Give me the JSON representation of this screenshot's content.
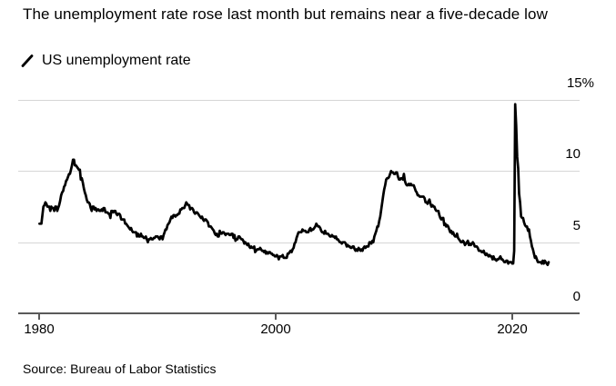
{
  "header": {
    "title": "The unemployment rate rose last month but remains near a five-decade low"
  },
  "legend": {
    "label": "US unemployment rate"
  },
  "footer": {
    "source": "Source: Bureau of Labor Statistics"
  },
  "colors": {
    "line": "#000000",
    "grid": "#d6d6d6",
    "axis": "#5a5a5a",
    "text": "#000000",
    "background": "#ffffff"
  },
  "chart_data": {
    "type": "line",
    "title": "The unemployment rate rose last month but remains near a five-decade low",
    "legend_entries": [
      "US unemployment rate"
    ],
    "ylabel": "",
    "xlabel": "",
    "grid": "horizontal",
    "legend_position": "top-left",
    "xlim": [
      1978.2,
      2025.7
    ],
    "ylim": [
      0,
      15
    ],
    "xticks": [
      1980,
      2000,
      2020
    ],
    "xtick_labels": [
      "1980",
      "2000",
      "2020"
    ],
    "yticks": [
      0,
      5,
      10,
      15
    ],
    "ytick_labels": [
      "0",
      "5",
      "10",
      "15%"
    ],
    "unit": "percent",
    "frequency": "monthly",
    "start_year": 1980,
    "start_month": 1,
    "end_year": 2023,
    "end_month": 2,
    "series": [
      {
        "name": "US unemployment rate",
        "values": [
          6.3,
          6.3,
          6.3,
          6.9,
          7.5,
          7.6,
          7.8,
          7.7,
          7.5,
          7.5,
          7.5,
          7.2,
          7.5,
          7.4,
          7.4,
          7.2,
          7.5,
          7.5,
          7.2,
          7.4,
          7.6,
          7.9,
          8.3,
          8.5,
          8.6,
          8.9,
          9.0,
          9.3,
          9.4,
          9.6,
          9.8,
          9.8,
          10.1,
          10.4,
          10.8,
          10.8,
          10.4,
          10.4,
          10.3,
          10.2,
          10.1,
          10.1,
          9.4,
          9.5,
          9.2,
          8.8,
          8.5,
          8.3,
          8.0,
          7.8,
          7.8,
          7.7,
          7.4,
          7.2,
          7.5,
          7.5,
          7.3,
          7.4,
          7.2,
          7.3,
          7.3,
          7.2,
          7.2,
          7.3,
          7.2,
          7.4,
          7.4,
          7.1,
          7.1,
          7.1,
          7.0,
          7.0,
          6.7,
          7.2,
          7.2,
          7.1,
          7.2,
          7.2,
          7.0,
          6.9,
          7.0,
          7.0,
          6.9,
          6.6,
          6.6,
          6.6,
          6.6,
          6.3,
          6.3,
          6.2,
          6.1,
          6.0,
          5.9,
          6.0,
          5.8,
          5.7,
          5.7,
          5.7,
          5.7,
          5.4,
          5.6,
          5.4,
          5.4,
          5.6,
          5.4,
          5.4,
          5.3,
          5.3,
          5.4,
          5.2,
          5.0,
          5.2,
          5.2,
          5.3,
          5.2,
          5.2,
          5.3,
          5.3,
          5.4,
          5.4,
          5.4,
          5.3,
          5.2,
          5.4,
          5.4,
          5.2,
          5.5,
          5.7,
          5.9,
          5.9,
          6.2,
          6.3,
          6.4,
          6.6,
          6.8,
          6.7,
          6.9,
          6.9,
          6.8,
          6.9,
          6.9,
          7.0,
          7.0,
          7.3,
          7.3,
          7.4,
          7.4,
          7.4,
          7.6,
          7.8,
          7.7,
          7.6,
          7.6,
          7.3,
          7.4,
          7.4,
          7.3,
          7.1,
          7.0,
          7.1,
          7.1,
          7.0,
          6.9,
          6.8,
          6.7,
          6.8,
          6.6,
          6.5,
          6.6,
          6.6,
          6.5,
          6.4,
          6.1,
          6.1,
          6.1,
          6.0,
          5.9,
          5.8,
          5.6,
          5.5,
          5.6,
          5.4,
          5.4,
          5.8,
          5.6,
          5.6,
          5.7,
          5.7,
          5.6,
          5.5,
          5.6,
          5.6,
          5.6,
          5.5,
          5.5,
          5.6,
          5.6,
          5.3,
          5.5,
          5.1,
          5.2,
          5.2,
          5.4,
          5.4,
          5.3,
          5.2,
          5.2,
          5.1,
          4.9,
          5.0,
          4.9,
          4.8,
          4.9,
          4.7,
          4.6,
          4.7,
          4.6,
          4.6,
          4.7,
          4.3,
          4.4,
          4.5,
          4.5,
          4.5,
          4.6,
          4.5,
          4.4,
          4.4,
          4.3,
          4.4,
          4.2,
          4.3,
          4.2,
          4.3,
          4.3,
          4.2,
          4.2,
          4.1,
          4.1,
          4.0,
          4.0,
          4.1,
          4.0,
          3.8,
          4.0,
          4.0,
          4.0,
          4.1,
          3.9,
          3.9,
          3.9,
          3.9,
          4.2,
          4.2,
          4.3,
          4.4,
          4.3,
          4.5,
          4.6,
          4.9,
          5.0,
          5.3,
          5.5,
          5.7,
          5.7,
          5.7,
          5.7,
          5.9,
          5.8,
          5.8,
          5.8,
          5.7,
          5.7,
          5.7,
          5.9,
          6.0,
          5.8,
          5.9,
          5.9,
          6.0,
          6.1,
          6.3,
          6.2,
          6.1,
          6.1,
          6.0,
          5.8,
          5.7,
          5.7,
          5.6,
          5.8,
          5.6,
          5.6,
          5.6,
          5.5,
          5.4,
          5.4,
          5.5,
          5.4,
          5.4,
          5.3,
          5.4,
          5.2,
          5.2,
          5.1,
          5.0,
          5.0,
          4.9,
          5.0,
          5.0,
          5.0,
          4.9,
          4.7,
          4.8,
          4.7,
          4.7,
          4.6,
          4.6,
          4.7,
          4.7,
          4.5,
          4.4,
          4.5,
          4.4,
          4.6,
          4.5,
          4.4,
          4.5,
          4.4,
          4.6,
          4.7,
          4.6,
          4.7,
          4.7,
          4.7,
          5.0,
          5.0,
          4.9,
          5.1,
          5.0,
          5.4,
          5.6,
          5.8,
          6.1,
          6.1,
          6.5,
          6.8,
          7.3,
          7.8,
          8.3,
          8.7,
          9.0,
          9.4,
          9.5,
          9.5,
          9.6,
          9.8,
          10.0,
          9.9,
          9.9,
          9.8,
          9.8,
          9.9,
          9.9,
          9.6,
          9.4,
          9.4,
          9.5,
          9.5,
          9.4,
          9.8,
          9.3,
          9.1,
          9.0,
          9.0,
          9.1,
          9.0,
          9.1,
          9.0,
          9.0,
          9.0,
          8.8,
          8.6,
          8.5,
          8.3,
          8.3,
          8.2,
          8.2,
          8.2,
          8.2,
          8.2,
          8.1,
          7.8,
          7.8,
          7.7,
          7.9,
          8.0,
          7.7,
          7.5,
          7.6,
          7.5,
          7.5,
          7.3,
          7.2,
          7.2,
          7.2,
          6.9,
          6.7,
          6.6,
          6.7,
          6.7,
          6.2,
          6.3,
          6.1,
          6.2,
          6.1,
          5.9,
          5.7,
          5.8,
          5.6,
          5.7,
          5.5,
          5.4,
          5.4,
          5.6,
          5.3,
          5.2,
          5.1,
          5.0,
          5.0,
          5.1,
          5.0,
          4.8,
          4.9,
          5.0,
          5.1,
          4.8,
          4.9,
          4.8,
          4.9,
          5.0,
          4.9,
          4.7,
          4.7,
          4.7,
          4.6,
          4.4,
          4.4,
          4.4,
          4.3,
          4.3,
          4.4,
          4.2,
          4.1,
          4.2,
          4.1,
          4.0,
          4.1,
          4.0,
          4.0,
          3.8,
          4.0,
          3.8,
          3.8,
          3.7,
          3.8,
          3.8,
          3.9,
          4.0,
          3.8,
          3.8,
          3.7,
          3.6,
          3.6,
          3.7,
          3.7,
          3.5,
          3.6,
          3.6,
          3.6,
          3.5,
          3.5,
          4.4,
          14.7,
          13.2,
          11.0,
          10.2,
          8.4,
          7.8,
          6.8,
          6.7,
          6.7,
          6.4,
          6.2,
          6.1,
          6.1,
          5.8,
          5.9,
          5.4,
          5.1,
          4.7,
          4.5,
          4.2,
          3.9,
          4.0,
          3.8,
          3.6,
          3.6,
          3.6,
          3.6,
          3.5,
          3.7,
          3.5,
          3.7,
          3.6,
          3.5,
          3.4,
          3.6
        ]
      }
    ]
  }
}
